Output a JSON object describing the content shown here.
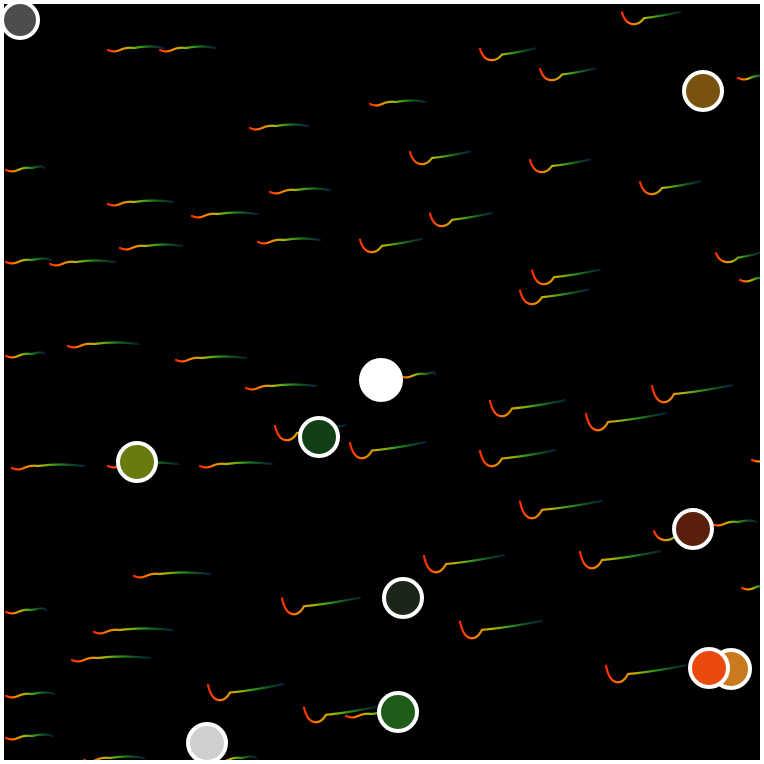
{
  "scene": {
    "background": "#000000",
    "frame_color": "#ffffff",
    "marker_outline": "#ffffff"
  },
  "markers": [
    {
      "id": "gray-dark",
      "color": "#4d4d4d"
    },
    {
      "id": "brown-olive",
      "color": "#7a5210"
    },
    {
      "id": "white",
      "color": "#ffffff"
    },
    {
      "id": "dark-green-1",
      "color": "#114016"
    },
    {
      "id": "olive",
      "color": "#6b7a0f"
    },
    {
      "id": "maroon",
      "color": "#5a200d"
    },
    {
      "id": "charcoal-green",
      "color": "#1c2618"
    },
    {
      "id": "amber",
      "color": "#c97a1c"
    },
    {
      "id": "orange",
      "color": "#ea4a0e"
    },
    {
      "id": "forest-green",
      "color": "#1f5c1a"
    },
    {
      "id": "light-gray",
      "color": "#cfcfcf"
    }
  ]
}
